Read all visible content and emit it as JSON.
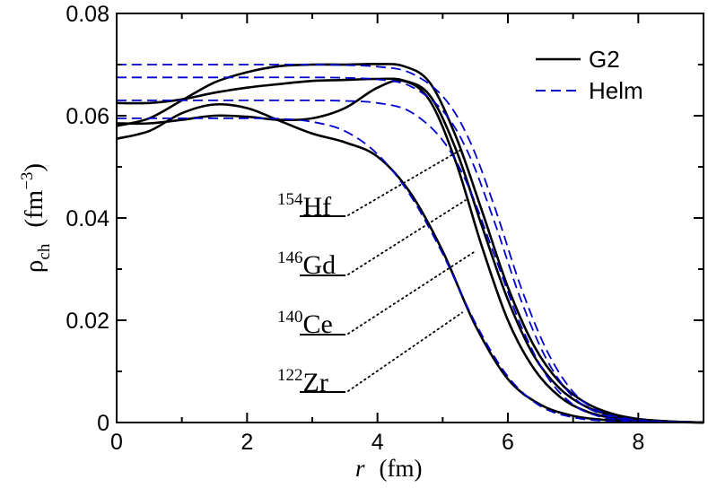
{
  "chart_data": {
    "type": "line",
    "title": "",
    "xlabel_var": "r",
    "xlabel_unit": "(fm)",
    "ylabel_sym": "ρ",
    "ylabel_sub": "ch",
    "ylabel_unit_open": "(fm",
    "ylabel_unit_exp": "−3",
    "ylabel_unit_close": ")",
    "xlim": [
      0,
      9
    ],
    "ylim": [
      0,
      0.08
    ],
    "xticks": [
      0,
      2,
      4,
      6,
      8
    ],
    "xtick_labels": [
      "0",
      "2",
      "4",
      "6",
      "8"
    ],
    "yticks": [
      0,
      0.02,
      0.04,
      0.06,
      0.08
    ],
    "ytick_labels": [
      "0",
      "0.02",
      "0.04",
      "0.06",
      "0.08"
    ],
    "legend": {
      "position": "top-right",
      "entries": [
        {
          "label": "G2",
          "style": "solid",
          "color": "#000000"
        },
        {
          "label": "Helm",
          "style": "dashed",
          "color": "#0000cc"
        }
      ]
    },
    "nuclei": [
      {
        "mass": "154",
        "symbol": "Hf"
      },
      {
        "mass": "146",
        "symbol": "Gd"
      },
      {
        "mass": "140",
        "symbol": "Ce"
      },
      {
        "mass": "122",
        "symbol": "Zr"
      }
    ],
    "series": [
      {
        "name": "G2",
        "nucleus": "154Hf",
        "style": "solid",
        "color": "#000000",
        "x": [
          0.0,
          0.5,
          1.0,
          1.5,
          2.0,
          2.5,
          3.0,
          3.5,
          4.0,
          4.4,
          4.8,
          5.2,
          5.6,
          6.0,
          6.4,
          6.8,
          7.2,
          7.6,
          8.0,
          8.5,
          9.0
        ],
        "y": [
          0.058,
          0.0595,
          0.063,
          0.0665,
          0.0685,
          0.0697,
          0.07,
          0.07,
          0.0701,
          0.0697,
          0.0665,
          0.056,
          0.0415,
          0.0265,
          0.015,
          0.0078,
          0.0038,
          0.0017,
          0.0007,
          0.0002,
          0.0
        ]
      },
      {
        "name": "G2",
        "nucleus": "146Gd",
        "style": "solid",
        "color": "#000000",
        "x": [
          0.0,
          0.5,
          1.0,
          1.5,
          2.0,
          2.5,
          3.0,
          3.5,
          4.0,
          4.4,
          4.8,
          5.2,
          5.6,
          6.0,
          6.4,
          6.8,
          7.2,
          7.6,
          8.0,
          8.5,
          9.0
        ],
        "y": [
          0.0625,
          0.0625,
          0.0632,
          0.0645,
          0.0655,
          0.0662,
          0.0668,
          0.067,
          0.0672,
          0.0669,
          0.064,
          0.0535,
          0.0385,
          0.024,
          0.013,
          0.0066,
          0.0031,
          0.0014,
          0.0006,
          0.0002,
          0.0
        ]
      },
      {
        "name": "G2",
        "nucleus": "140Ce",
        "style": "solid",
        "color": "#000000",
        "x": [
          0.0,
          0.5,
          1.0,
          1.5,
          2.0,
          2.5,
          3.0,
          3.5,
          4.0,
          4.4,
          4.8,
          5.2,
          5.6,
          6.0,
          6.4,
          6.8,
          7.2,
          7.6,
          8.0,
          8.5,
          9.0
        ],
        "y": [
          0.0585,
          0.0585,
          0.0592,
          0.06,
          0.0598,
          0.0592,
          0.0595,
          0.0615,
          0.0655,
          0.0668,
          0.063,
          0.051,
          0.0345,
          0.02,
          0.0105,
          0.005,
          0.0022,
          0.0009,
          0.0004,
          0.0001,
          0.0
        ]
      },
      {
        "name": "G2",
        "nucleus": "122Zr",
        "style": "solid",
        "color": "#000000",
        "x": [
          0.0,
          0.5,
          1.0,
          1.5,
          2.0,
          2.5,
          3.0,
          3.5,
          4.0,
          4.5,
          5.0,
          5.5,
          6.0,
          6.5,
          7.0,
          7.5,
          8.0,
          8.5,
          9.0
        ],
        "y": [
          0.0555,
          0.057,
          0.0605,
          0.0622,
          0.0615,
          0.059,
          0.0565,
          0.0548,
          0.052,
          0.045,
          0.0335,
          0.019,
          0.0085,
          0.0035,
          0.0013,
          0.0005,
          0.0002,
          0.0001,
          0.0
        ]
      },
      {
        "name": "Helm",
        "nucleus": "154Hf",
        "style": "dashed",
        "color": "#0000cc",
        "x": [
          0.0,
          1.0,
          2.0,
          3.0,
          3.5,
          4.0,
          4.5,
          5.0,
          5.4,
          5.8,
          6.2,
          6.6,
          7.0,
          7.4,
          7.8,
          8.2,
          9.0
        ],
        "y": [
          0.07,
          0.07,
          0.07,
          0.07,
          0.0699,
          0.0696,
          0.0684,
          0.0638,
          0.0555,
          0.042,
          0.0265,
          0.014,
          0.006,
          0.0022,
          0.0008,
          0.0003,
          0.0
        ]
      },
      {
        "name": "Helm",
        "nucleus": "146Gd",
        "style": "dashed",
        "color": "#0000cc",
        "x": [
          0.0,
          1.0,
          2.0,
          3.0,
          3.5,
          4.0,
          4.5,
          5.0,
          5.4,
          5.8,
          6.2,
          6.6,
          7.0,
          7.4,
          7.8,
          8.2,
          9.0
        ],
        "y": [
          0.0675,
          0.0675,
          0.0675,
          0.0675,
          0.0674,
          0.0671,
          0.0658,
          0.061,
          0.0525,
          0.039,
          0.024,
          0.0122,
          0.005,
          0.0018,
          0.0006,
          0.0002,
          0.0
        ]
      },
      {
        "name": "Helm",
        "nucleus": "140Ce",
        "style": "dashed",
        "color": "#0000cc",
        "x": [
          0.0,
          1.0,
          2.0,
          3.0,
          3.5,
          4.0,
          4.5,
          5.0,
          5.4,
          5.8,
          6.2,
          6.6,
          7.0,
          7.4,
          7.8,
          8.2,
          9.0
        ],
        "y": [
          0.063,
          0.063,
          0.063,
          0.063,
          0.0629,
          0.0625,
          0.0608,
          0.0552,
          0.046,
          0.0325,
          0.019,
          0.009,
          0.0035,
          0.0012,
          0.0004,
          0.0001,
          0.0
        ]
      },
      {
        "name": "Helm",
        "nucleus": "122Zr",
        "style": "dashed",
        "color": "#0000cc",
        "x": [
          0.0,
          1.0,
          2.0,
          2.5,
          3.0,
          3.5,
          4.0,
          4.5,
          5.0,
          5.5,
          6.0,
          6.5,
          7.0,
          7.5,
          8.0,
          9.0
        ],
        "y": [
          0.0595,
          0.0595,
          0.0595,
          0.0594,
          0.0588,
          0.057,
          0.0525,
          0.0445,
          0.033,
          0.0195,
          0.009,
          0.0032,
          0.001,
          0.0003,
          0.0001,
          0.0
        ]
      }
    ],
    "pointer_lines": [
      {
        "nucleus": "154Hf",
        "target": {
          "x": 5.3,
          "y": 0.0535
        }
      },
      {
        "nucleus": "146Gd",
        "target": {
          "x": 5.35,
          "y": 0.0435
        }
      },
      {
        "nucleus": "140Ce",
        "target": {
          "x": 5.5,
          "y": 0.0335
        }
      },
      {
        "nucleus": "122Zr",
        "target": {
          "x": 5.3,
          "y": 0.0215
        }
      }
    ]
  }
}
